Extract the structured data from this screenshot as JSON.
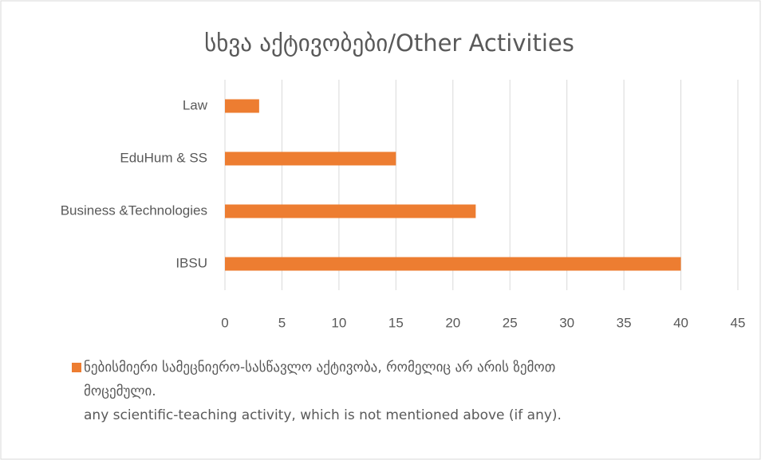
{
  "chart_data": {
    "type": "barh",
    "title": "სხვა აქტივობები/Other Activities",
    "categories": [
      "Law",
      "EduHum & SS",
      "Business &Technologies",
      "IBSU"
    ],
    "series": [
      {
        "name": "ნებისმიერი სამეცნიერო-სასწავლო აქტივობა, რომელიც არ არის ზემოთ მოცემული.\n any scientific-teaching activity, which is not mentioned above (if any).",
        "color": "#ed7d31",
        "values": [
          3,
          15,
          22,
          40
        ]
      }
    ],
    "xlim": [
      0,
      45
    ],
    "xticks": [
      0,
      5,
      10,
      15,
      20,
      25,
      30,
      35,
      40,
      45
    ],
    "grid": true,
    "legend": "bottom"
  }
}
